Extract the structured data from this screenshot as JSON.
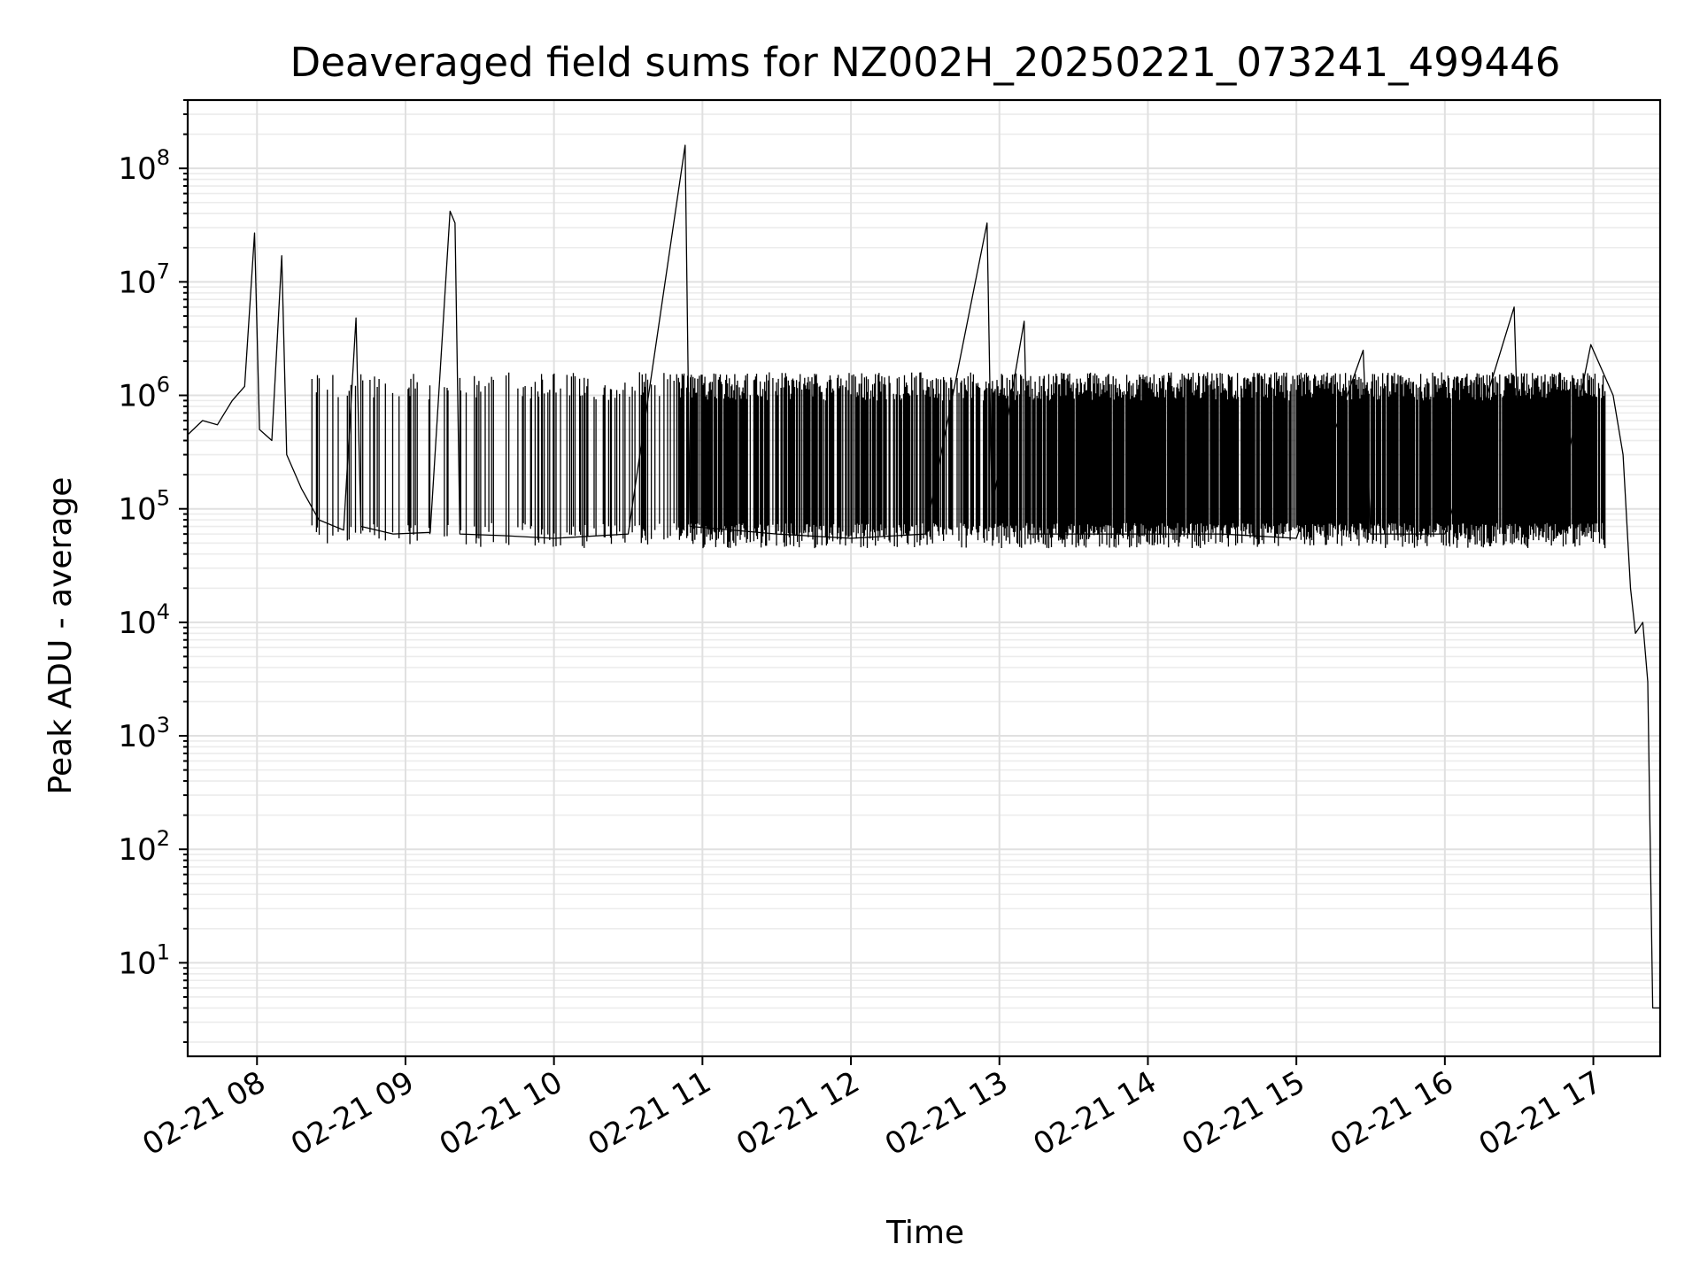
{
  "chart_data": {
    "type": "line",
    "title": "Deaveraged field sums for NZ002H_20250221_073241_499446",
    "xlabel": "Time",
    "ylabel": "Peak ADU - average",
    "yscale": "log",
    "ylim": [
      1.5,
      400000000
    ],
    "xlim": [
      "2025-02-21 07:32",
      "2025-02-21 17:27"
    ],
    "grid": true,
    "x_ticks": [
      "02-21 08",
      "02-21 09",
      "02-21 10",
      "02-21 11",
      "02-21 12",
      "02-21 13",
      "02-21 14",
      "02-21 15",
      "02-21 16",
      "02-21 17"
    ],
    "y_ticks": [
      {
        "base": "10",
        "exp": "1"
      },
      {
        "base": "10",
        "exp": "2"
      },
      {
        "base": "10",
        "exp": "3"
      },
      {
        "base": "10",
        "exp": "4"
      },
      {
        "base": "10",
        "exp": "5"
      },
      {
        "base": "10",
        "exp": "6"
      },
      {
        "base": "10",
        "exp": "7"
      },
      {
        "base": "10",
        "exp": "8"
      }
    ],
    "series": [
      {
        "color": "#000000",
        "points": [
          [
            "2025-02-21 07:32",
            450000
          ],
          [
            "2025-02-21 07:38",
            600000
          ],
          [
            "2025-02-21 07:44",
            550000
          ],
          [
            "2025-02-21 07:50",
            900000
          ],
          [
            "2025-02-21 07:55",
            1200000
          ],
          [
            "2025-02-21 07:59",
            27000000
          ],
          [
            "2025-02-21 08:01",
            500000
          ],
          [
            "2025-02-21 08:06",
            400000
          ],
          [
            "2025-02-21 08:10",
            17000000
          ],
          [
            "2025-02-21 08:12",
            300000
          ],
          [
            "2025-02-21 08:18",
            150000
          ],
          [
            "2025-02-21 08:25",
            80000
          ],
          [
            "2025-02-21 08:35",
            65000
          ],
          [
            "2025-02-21 08:40",
            4800000
          ],
          [
            "2025-02-21 08:42",
            70000
          ],
          [
            "2025-02-21 08:55",
            60000
          ],
          [
            "2025-02-21 09:10",
            62000
          ],
          [
            "2025-02-21 09:18",
            42000000
          ],
          [
            "2025-02-21 09:20",
            33000000
          ],
          [
            "2025-02-21 09:22",
            60000
          ],
          [
            "2025-02-21 09:40",
            58000
          ],
          [
            "2025-02-21 10:00",
            55000
          ],
          [
            "2025-02-21 10:30",
            60000
          ],
          [
            "2025-02-21 10:53",
            160000000
          ],
          [
            "2025-02-21 10:55",
            70000
          ],
          [
            "2025-02-21 11:30",
            60000
          ],
          [
            "2025-02-21 12:00",
            55000
          ],
          [
            "2025-02-21 12:30",
            60000
          ],
          [
            "2025-02-21 12:55",
            33000000
          ],
          [
            "2025-02-21 12:57",
            100000
          ],
          [
            "2025-02-21 13:10",
            4500000
          ],
          [
            "2025-02-21 13:12",
            60000
          ],
          [
            "2025-02-21 13:30",
            60000
          ],
          [
            "2025-02-21 14:00",
            60000
          ],
          [
            "2025-02-21 14:30",
            60000
          ],
          [
            "2025-02-21 15:00",
            55000
          ],
          [
            "2025-02-21 15:27",
            2500000
          ],
          [
            "2025-02-21 15:30",
            60000
          ],
          [
            "2025-02-21 16:00",
            60000
          ],
          [
            "2025-02-21 16:28",
            6000000
          ],
          [
            "2025-02-21 16:30",
            200000
          ],
          [
            "2025-02-21 16:50",
            300000
          ],
          [
            "2025-02-21 16:59",
            2800000
          ],
          [
            "2025-02-21 17:08",
            1000000
          ],
          [
            "2025-02-21 17:12",
            300000
          ],
          [
            "2025-02-21 17:15",
            20000
          ],
          [
            "2025-02-21 17:17",
            8000
          ],
          [
            "2025-02-21 17:20",
            10000
          ],
          [
            "2025-02-21 17:22",
            3000
          ],
          [
            "2025-02-21 17:24",
            4
          ],
          [
            "2025-02-21 17:27",
            4
          ]
        ]
      }
    ]
  }
}
